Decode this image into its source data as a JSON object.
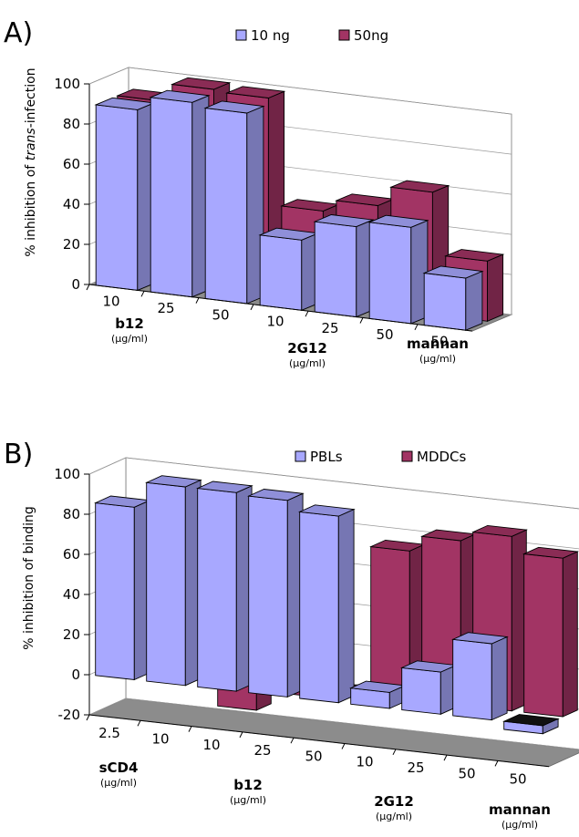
{
  "panels": [
    {
      "letter": "A)",
      "legend": [
        "10 ng",
        "50ng"
      ],
      "ylabel_parts": [
        "% inhibition of ",
        "trans",
        "-infection"
      ],
      "ytick_labels": [
        "0",
        "20",
        "40",
        "60",
        "80",
        "100"
      ],
      "x_tick_labels": [
        "10",
        "25",
        "50",
        "10",
        "25",
        "50",
        "50"
      ],
      "groups": [
        {
          "name": "b12",
          "unit": "(µg/ml)"
        },
        {
          "name": "2G12",
          "unit": "(µg/ml)"
        },
        {
          "name": "mannan",
          "unit": "(µg/ml)"
        }
      ]
    },
    {
      "letter": "B)",
      "legend": [
        "PBLs",
        "MDDCs"
      ],
      "ylabel_parts": [
        "% inhibition of binding"
      ],
      "ytick_labels": [
        "-20",
        "0",
        "20",
        "40",
        "60",
        "80",
        "100"
      ],
      "x_tick_labels": [
        "2.5",
        "10",
        "10",
        "25",
        "50",
        "10",
        "25",
        "50",
        "50"
      ],
      "groups": [
        {
          "name": "sCD4",
          "unit": "(µg/ml)"
        },
        {
          "name": "b12",
          "unit": "(µg/ml)"
        },
        {
          "name": "2G12",
          "unit": "(µg/ml)"
        },
        {
          "name": "mannan",
          "unit": "(µg/ml)"
        }
      ]
    }
  ],
  "colors": {
    "series1": "#a8a8ff",
    "series2": "#a23464",
    "floor": "#8c8c8c",
    "wall": "#ffffff",
    "gridline": "#9a9a9a"
  },
  "chart_data": [
    {
      "type": "bar",
      "title": "",
      "xlabel": "",
      "ylabel": "% inhibition of trans-infection",
      "categories": [
        "10",
        "25",
        "50",
        "10",
        "25",
        "50",
        "50"
      ],
      "series": [
        {
          "name": "10 ng",
          "values": [
            90,
            97,
            95,
            35,
            45,
            48,
            26
          ]
        },
        {
          "name": "50ng",
          "values": [
            90,
            99,
            98,
            45,
            51,
            61,
            30
          ]
        }
      ],
      "ylim": [
        0,
        100
      ],
      "grid": true,
      "legend_position": "top"
    },
    {
      "type": "bar",
      "title": "",
      "xlabel": "",
      "ylabel": "% inhibition of binding",
      "categories": [
        "2.5",
        "10",
        "10",
        "25",
        "50",
        "10",
        "25",
        "50",
        "50"
      ],
      "series": [
        {
          "name": "PBLs",
          "values": [
            86,
            99,
            99,
            98,
            93,
            8,
            21,
            38,
            -4
          ]
        },
        {
          "name": "MDDCs",
          "values": [
            8,
            20,
            -14,
            -4,
            0,
            74,
            82,
            87,
            79
          ]
        }
      ],
      "ylim": [
        -20,
        100
      ],
      "grid": true,
      "legend_position": "top"
    }
  ]
}
